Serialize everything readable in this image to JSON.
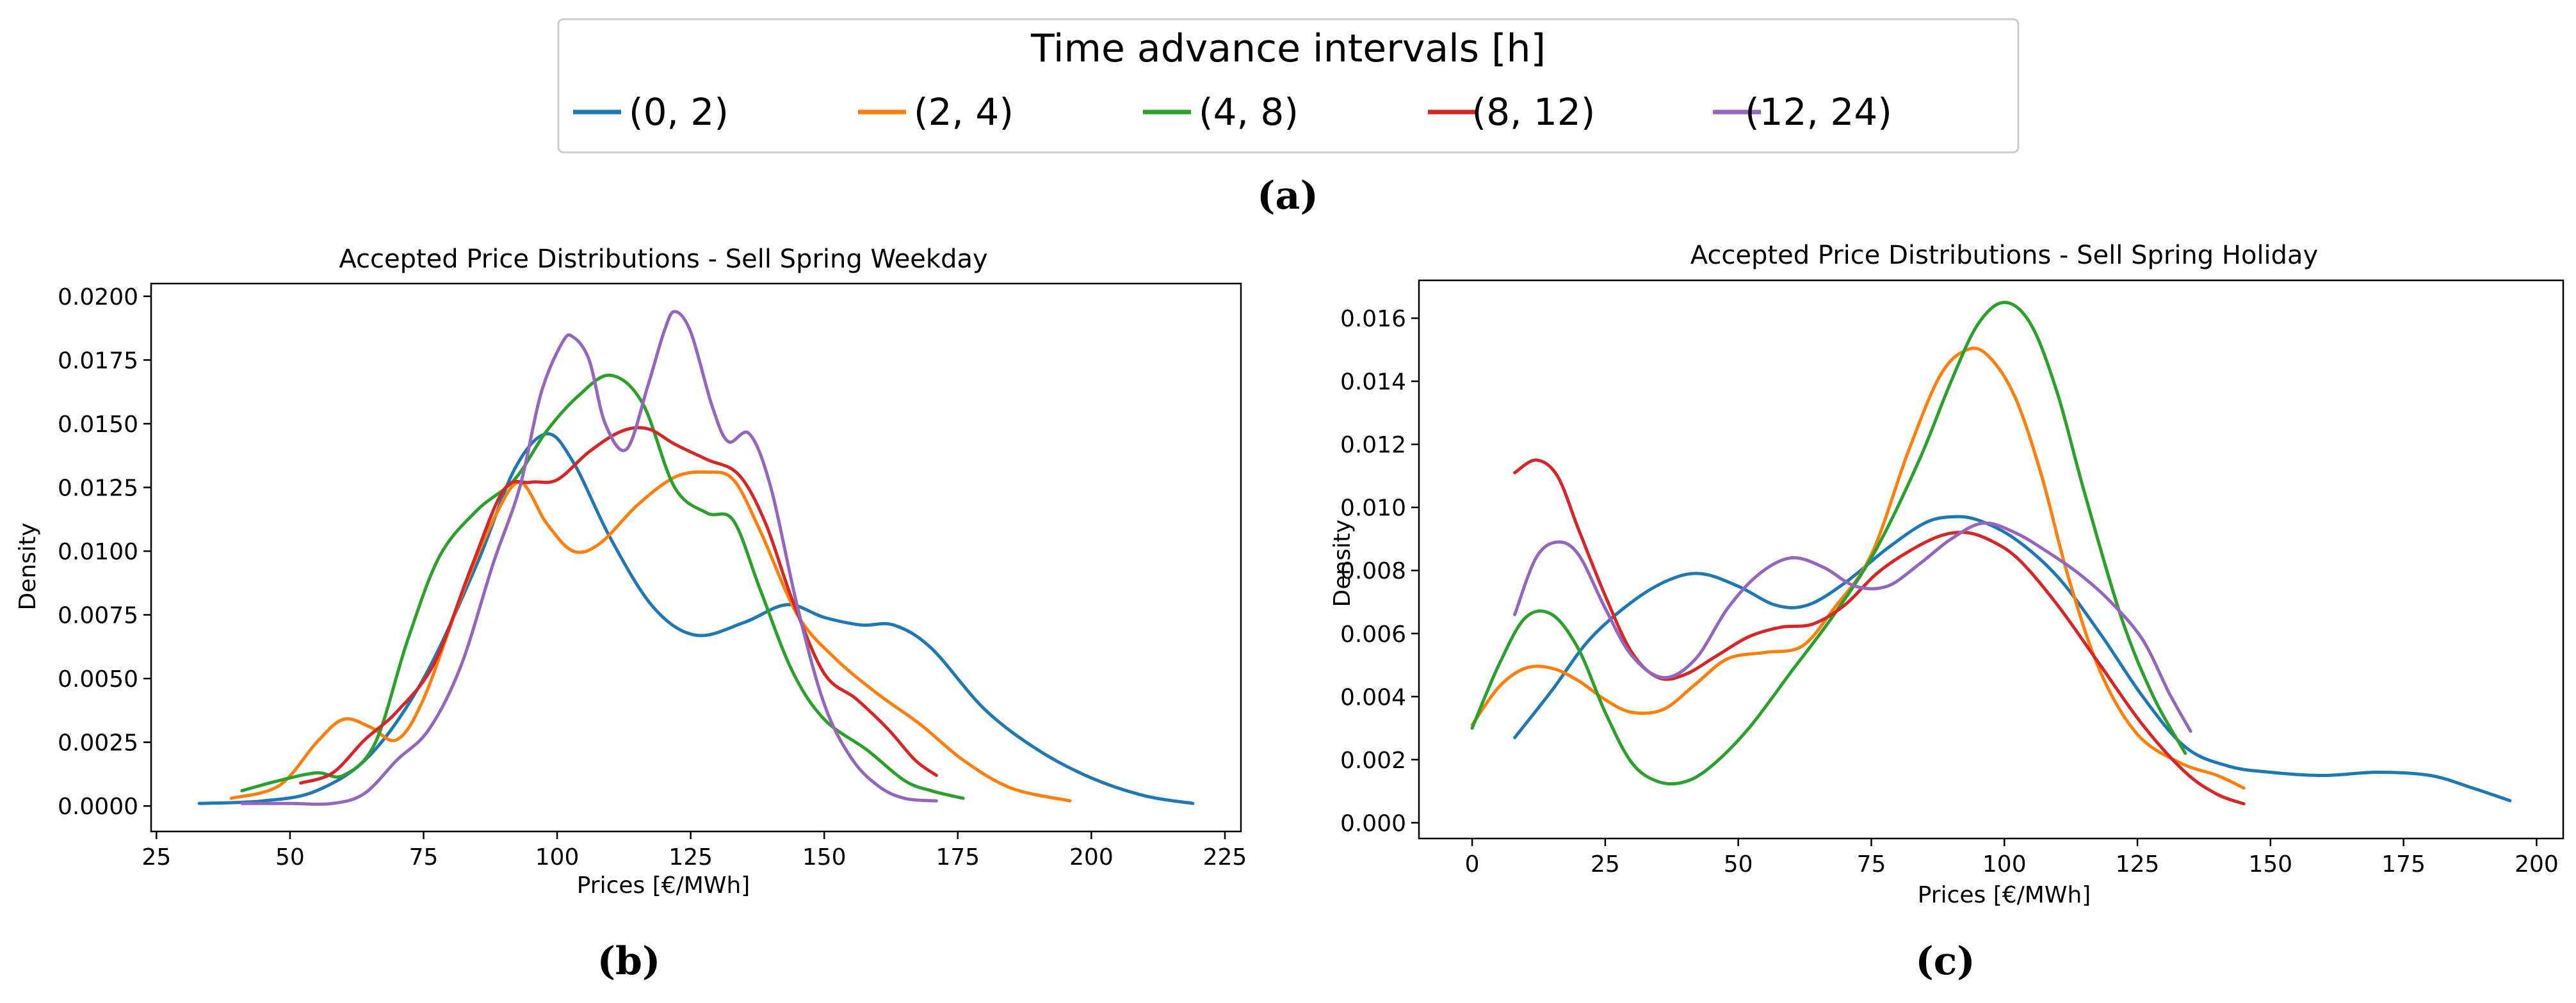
{
  "legend": {
    "title": "Time advance intervals [h]",
    "entries": [
      {
        "label": "(0, 2)",
        "color": "#1f77b4"
      },
      {
        "label": "(2, 4)",
        "color": "#ff7f0e"
      },
      {
        "label": "(4, 8)",
        "color": "#2ca02c"
      },
      {
        "label": "(8, 12)",
        "color": "#d62728"
      },
      {
        "label": "(12, 24)",
        "color": "#9467bd"
      }
    ]
  },
  "captions": {
    "a": "(a)",
    "b": "(b)",
    "c": "(c)"
  },
  "chart_data": [
    {
      "type": "line",
      "title": "Accepted Price Distributions - Sell Spring Weekday",
      "xlabel": "Prices [€/MWh]",
      "ylabel": "Density",
      "xlim": [
        24,
        228
      ],
      "ylim": [
        -0.001,
        0.0205
      ],
      "xticks": [
        25,
        50,
        75,
        100,
        125,
        150,
        175,
        200,
        225
      ],
      "xtick_labels": [
        "25",
        "50",
        "75",
        "100",
        "125",
        "150",
        "175",
        "200",
        "225"
      ],
      "yticks": [
        0,
        0.0025,
        0.005,
        0.0075,
        0.01,
        0.0125,
        0.015,
        0.0175,
        0.02
      ],
      "ytick_labels": [
        "0.0000",
        "0.0025",
        "0.0050",
        "0.0075",
        "0.0100",
        "0.0125",
        "0.0150",
        "0.0175",
        "0.0200"
      ],
      "series": [
        {
          "name": "(0, 2)",
          "x": [
            33,
            45,
            55,
            65,
            75,
            85,
            92,
            98,
            103,
            110,
            118,
            126,
            135,
            143,
            150,
            157,
            163,
            170,
            180,
            190,
            200,
            210,
            219
          ],
          "y": [
            0.0001,
            0.0002,
            0.0006,
            0.002,
            0.005,
            0.0095,
            0.0132,
            0.0146,
            0.0135,
            0.0105,
            0.0078,
            0.0067,
            0.0072,
            0.0079,
            0.0074,
            0.0071,
            0.0071,
            0.0062,
            0.0038,
            0.0022,
            0.0011,
            0.0004,
            0.0001
          ]
        },
        {
          "name": "(2, 4)",
          "x": [
            39,
            48,
            55,
            60,
            65,
            70,
            75,
            82,
            88,
            93,
            98,
            103,
            108,
            115,
            122,
            128,
            133,
            138,
            145,
            152,
            160,
            168,
            176,
            185,
            196
          ],
          "y": [
            0.0003,
            0.0008,
            0.0025,
            0.0034,
            0.0031,
            0.0026,
            0.0042,
            0.0082,
            0.0112,
            0.0127,
            0.0111,
            0.01,
            0.0103,
            0.0118,
            0.0129,
            0.0131,
            0.0128,
            0.0108,
            0.0075,
            0.0058,
            0.0044,
            0.0032,
            0.0018,
            0.0007,
            0.0002
          ]
        },
        {
          "name": "(4, 8)",
          "x": [
            41,
            48,
            55,
            60,
            66,
            72,
            78,
            85,
            92,
            98,
            104,
            110,
            116,
            122,
            128,
            133,
            138,
            144,
            150,
            158,
            165,
            170,
            176
          ],
          "y": [
            0.0006,
            0.001,
            0.0013,
            0.0012,
            0.0025,
            0.0065,
            0.0098,
            0.0116,
            0.0128,
            0.0147,
            0.0161,
            0.0169,
            0.0158,
            0.0125,
            0.0115,
            0.0112,
            0.0085,
            0.0053,
            0.0034,
            0.0022,
            0.001,
            0.0006,
            0.0003
          ]
        },
        {
          "name": "(8, 12)",
          "x": [
            52,
            58,
            64,
            70,
            77,
            84,
            90,
            95,
            100,
            106,
            112,
            117,
            122,
            128,
            134,
            139,
            144,
            150,
            156,
            162,
            167,
            171
          ],
          "y": [
            0.0009,
            0.0013,
            0.0026,
            0.0037,
            0.0056,
            0.0094,
            0.0124,
            0.0127,
            0.0128,
            0.0139,
            0.0147,
            0.0148,
            0.0142,
            0.0136,
            0.013,
            0.0111,
            0.0081,
            0.0052,
            0.0042,
            0.003,
            0.0018,
            0.0012
          ]
        },
        {
          "name": "(12, 24)",
          "x": [
            41,
            50,
            58,
            64,
            70,
            76,
            82,
            88,
            93,
            97,
            101,
            103,
            106,
            109,
            113,
            117,
            120,
            122,
            125,
            129,
            132,
            136,
            140,
            145,
            150,
            155,
            160,
            165,
            171
          ],
          "y": [
            0.0001,
            0.0001,
            0.0001,
            0.0005,
            0.0018,
            0.003,
            0.0055,
            0.0095,
            0.0125,
            0.0162,
            0.0182,
            0.0184,
            0.0175,
            0.015,
            0.014,
            0.0165,
            0.0186,
            0.0194,
            0.0186,
            0.0157,
            0.0143,
            0.0146,
            0.0125,
            0.0078,
            0.004,
            0.0019,
            0.0008,
            0.0003,
            0.0002
          ]
        }
      ]
    },
    {
      "type": "line",
      "title": "Accepted Price Distributions - Sell Spring Holiday",
      "xlabel": "Prices [€/MWh]",
      "ylabel": "Density",
      "xlim": [
        -10,
        205
      ],
      "ylim": [
        -0.0005,
        0.0172
      ],
      "xticks": [
        0,
        25,
        50,
        75,
        100,
        125,
        150,
        175,
        200
      ],
      "xtick_labels": [
        "0",
        "25",
        "50",
        "75",
        "100",
        "125",
        "150",
        "175",
        "200"
      ],
      "yticks": [
        0,
        0.002,
        0.004,
        0.006,
        0.008,
        0.01,
        0.012,
        0.014,
        0.016
      ],
      "ytick_labels": [
        "0.000",
        "0.002",
        "0.004",
        "0.006",
        "0.008",
        "0.010",
        "0.012",
        "0.014",
        "0.016"
      ],
      "series": [
        {
          "name": "(0, 2)",
          "x": [
            8,
            15,
            22,
            30,
            37,
            43,
            50,
            57,
            63,
            70,
            78,
            85,
            90,
            95,
            102,
            110,
            118,
            126,
            134,
            142,
            150,
            160,
            170,
            180,
            188,
            195
          ],
          "y": [
            0.0027,
            0.0042,
            0.0058,
            0.007,
            0.0077,
            0.0079,
            0.0075,
            0.0069,
            0.0069,
            0.0076,
            0.0087,
            0.0095,
            0.0097,
            0.0096,
            0.009,
            0.0078,
            0.006,
            0.004,
            0.0024,
            0.0018,
            0.0016,
            0.0015,
            0.0016,
            0.0015,
            0.0011,
            0.0007
          ]
        },
        {
          "name": "(2, 4)",
          "x": [
            0,
            5,
            10,
            15,
            20,
            25,
            30,
            36,
            42,
            48,
            55,
            62,
            68,
            75,
            82,
            88,
            93,
            97,
            102,
            107,
            112,
            118,
            125,
            133,
            140,
            145
          ],
          "y": [
            0.0031,
            0.0043,
            0.0049,
            0.0049,
            0.0045,
            0.0039,
            0.0035,
            0.0036,
            0.0044,
            0.0052,
            0.0054,
            0.0056,
            0.0068,
            0.0085,
            0.0118,
            0.0142,
            0.015,
            0.0148,
            0.0135,
            0.011,
            0.0078,
            0.0048,
            0.0028,
            0.0019,
            0.0015,
            0.0011
          ]
        },
        {
          "name": "(4, 8)",
          "x": [
            0,
            5,
            10,
            15,
            20,
            25,
            30,
            35,
            40,
            45,
            52,
            60,
            68,
            76,
            84,
            90,
            95,
            100,
            105,
            110,
            115,
            122,
            128,
            134
          ],
          "y": [
            0.003,
            0.005,
            0.0065,
            0.0066,
            0.0055,
            0.0035,
            0.0019,
            0.0013,
            0.0013,
            0.0018,
            0.003,
            0.0048,
            0.0066,
            0.0087,
            0.0115,
            0.014,
            0.0158,
            0.0165,
            0.0158,
            0.0136,
            0.0105,
            0.0065,
            0.004,
            0.0022
          ]
        },
        {
          "name": "(8, 12)",
          "x": [
            8,
            12,
            16,
            20,
            25,
            30,
            35,
            40,
            46,
            52,
            58,
            64,
            70,
            76,
            82,
            88,
            93,
            98,
            103,
            110,
            118,
            126,
            134,
            140,
            145
          ],
          "y": [
            0.0111,
            0.0115,
            0.011,
            0.0093,
            0.0072,
            0.0054,
            0.0046,
            0.0047,
            0.0053,
            0.0059,
            0.0062,
            0.0063,
            0.0069,
            0.0079,
            0.0086,
            0.0091,
            0.0092,
            0.0089,
            0.0083,
            0.0069,
            0.005,
            0.0031,
            0.0016,
            0.0009,
            0.0006
          ]
        },
        {
          "name": "(12, 24)",
          "x": [
            8,
            12,
            16,
            20,
            25,
            30,
            36,
            42,
            48,
            54,
            60,
            66,
            72,
            78,
            84,
            90,
            96,
            102,
            108,
            114,
            120,
            126,
            131,
            135
          ],
          "y": [
            0.0066,
            0.0084,
            0.0089,
            0.0085,
            0.0068,
            0.0053,
            0.0046,
            0.0052,
            0.0068,
            0.0079,
            0.0084,
            0.0081,
            0.0075,
            0.0075,
            0.0082,
            0.009,
            0.0095,
            0.0092,
            0.0086,
            0.0079,
            0.007,
            0.0058,
            0.0041,
            0.0029
          ]
        }
      ]
    }
  ]
}
